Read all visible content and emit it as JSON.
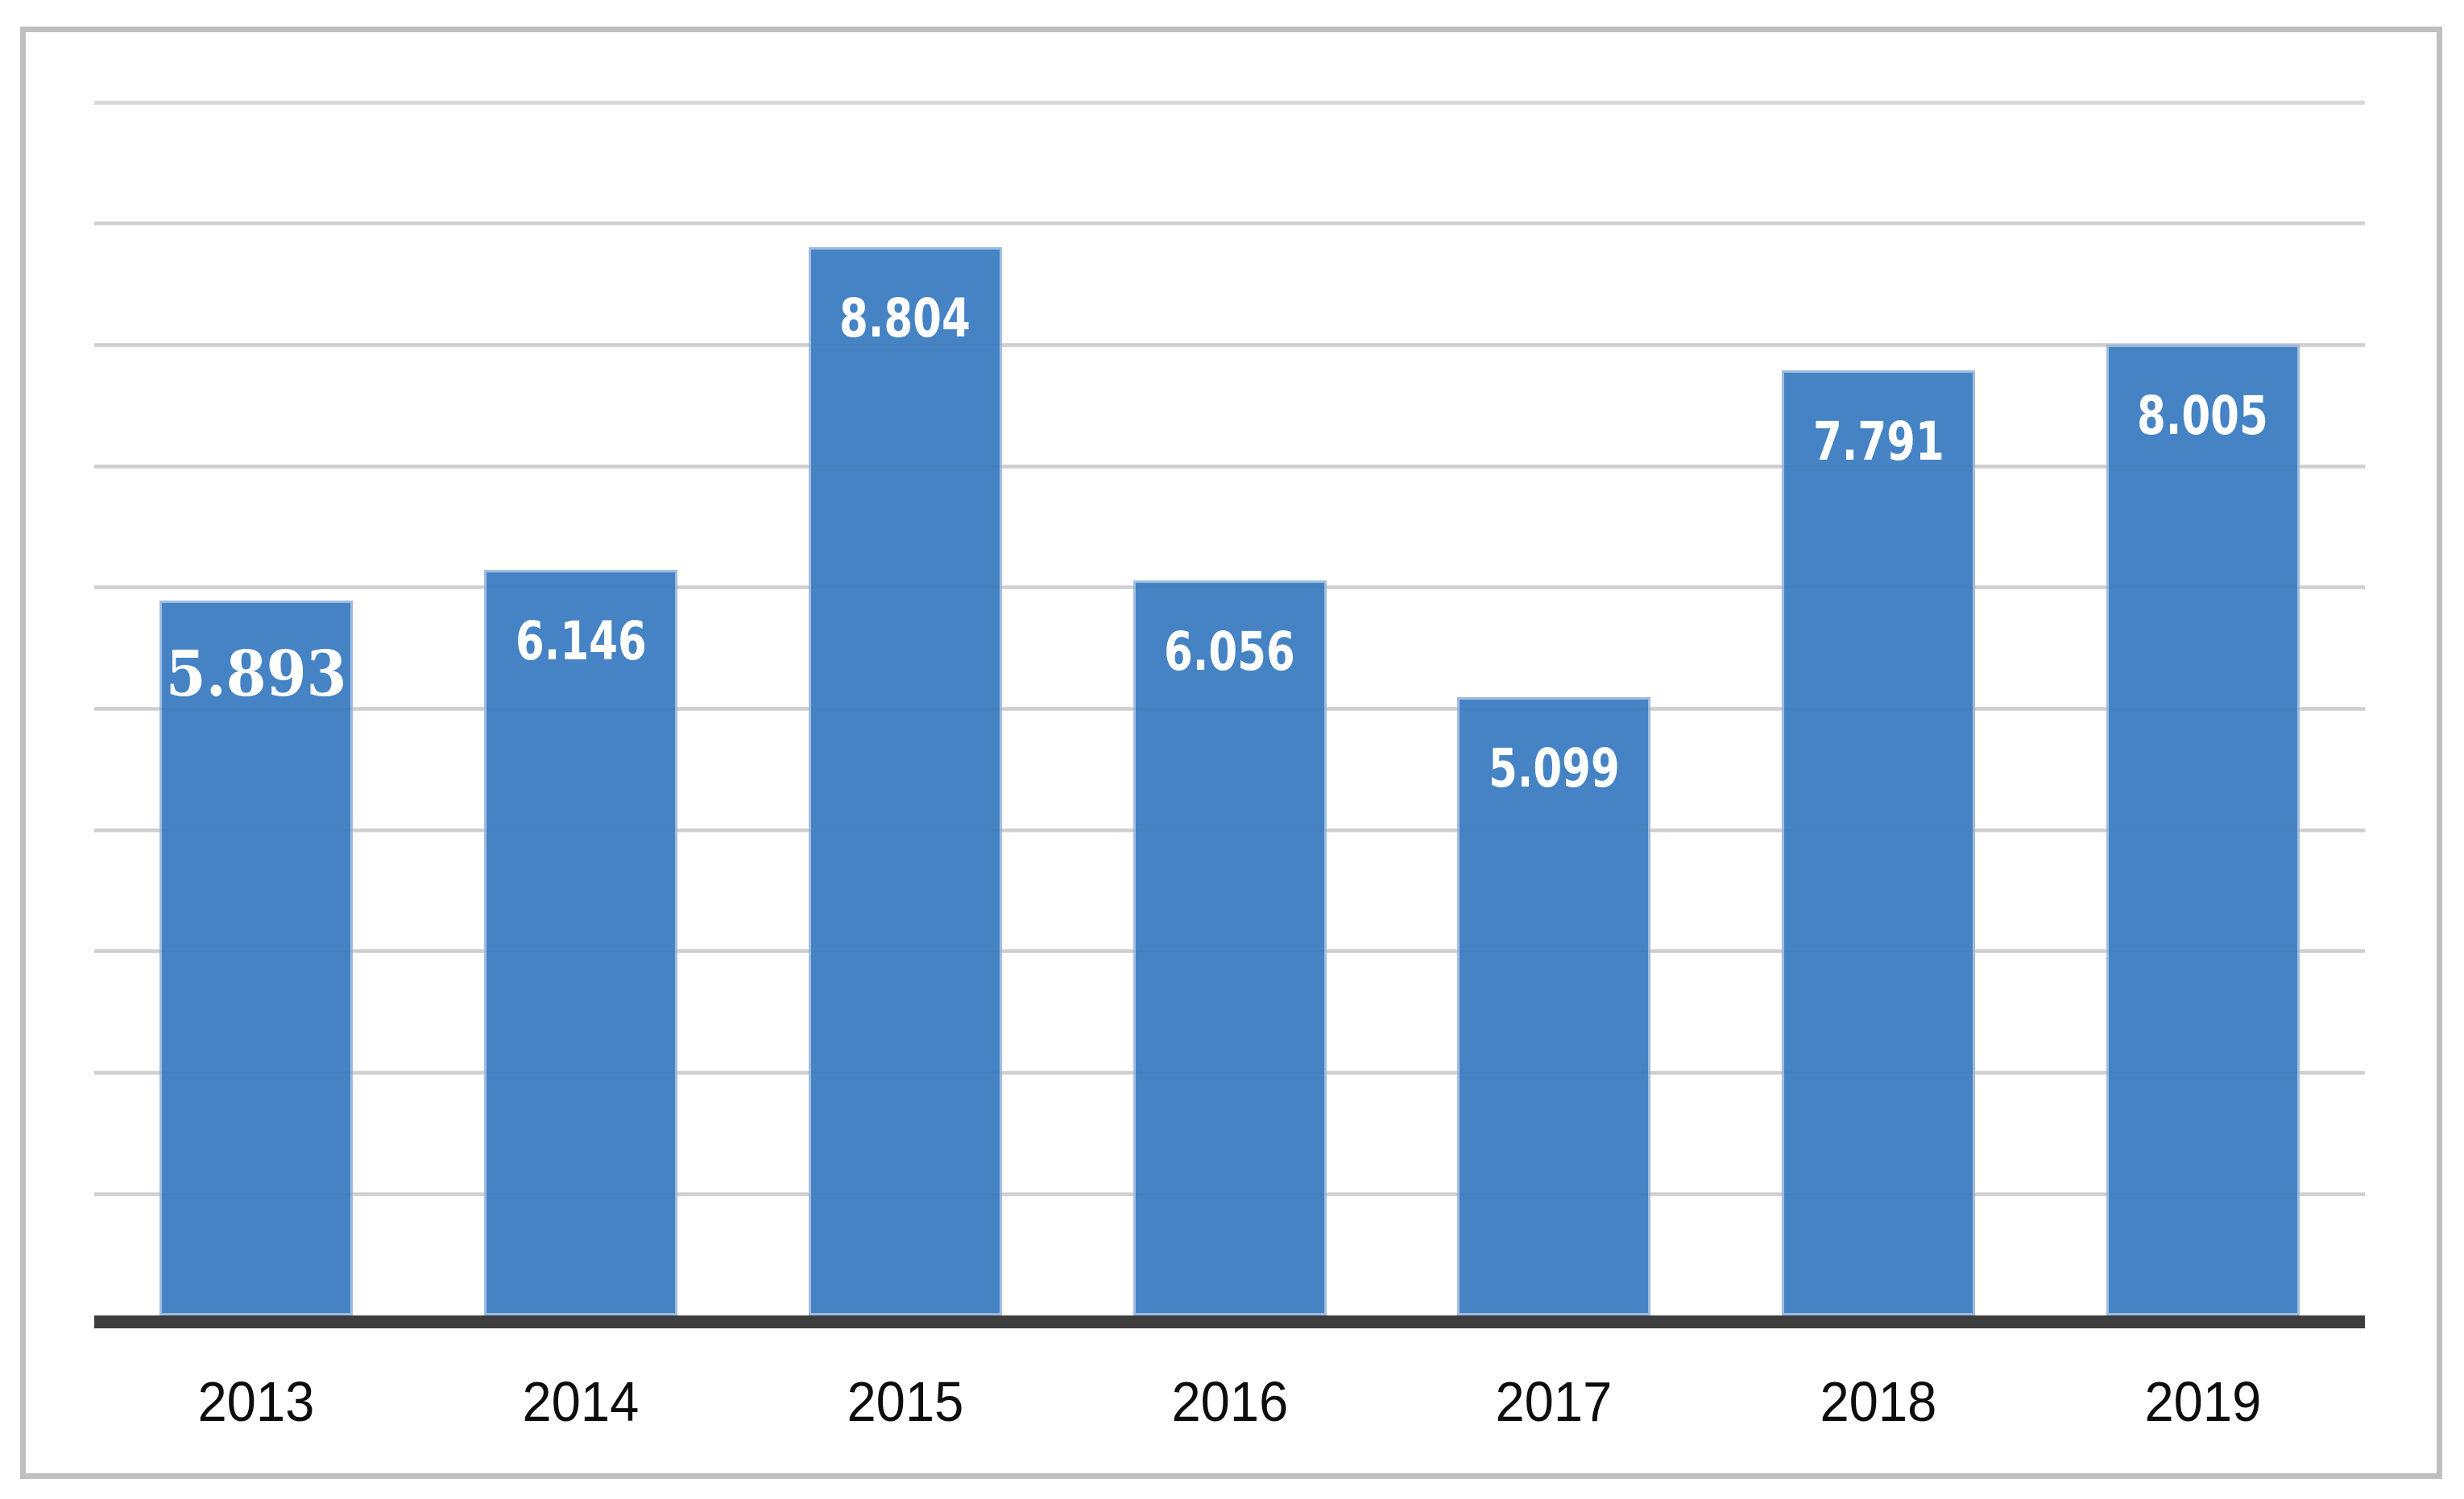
{
  "chart_data": {
    "type": "bar",
    "categories": [
      "2013",
      "2014",
      "2015",
      "2016",
      "2017",
      "2018",
      "2019"
    ],
    "values": [
      5893,
      6146,
      8804,
      6056,
      5099,
      7791,
      8005
    ],
    "value_labels": [
      "5.893",
      "6.146",
      "8.804",
      "6.056",
      "5.099",
      "7.791",
      "8.005"
    ],
    "ylim": [
      0,
      10000
    ],
    "gridline_step": 1000,
    "grid": true,
    "legend": false,
    "y_tick_labels_visible": false,
    "colors": {
      "bar_fill": "#4583C5",
      "bar_edge": "#9FBCE2",
      "value_label": "#FFFFFF",
      "gridline": "#D9D9D9",
      "axis_line": "#3D3D3D",
      "frame_border": "#BFBFBF",
      "tick_label": "#0D0D0D",
      "background": "#FFFFFF"
    }
  }
}
